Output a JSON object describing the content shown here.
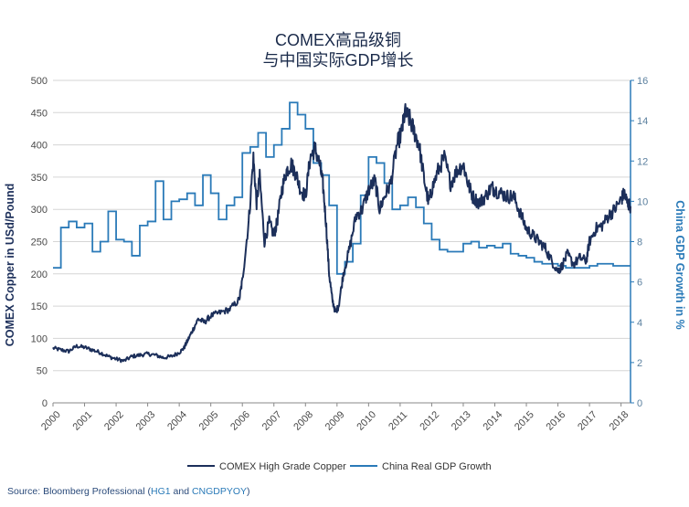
{
  "chart_data": {
    "type": "line",
    "title": [
      "COMEX高品级铜",
      "与中国实际GDP增长"
    ],
    "x_tick_labels": [
      "2000",
      "2001",
      "2002",
      "2003",
      "2004",
      "2005",
      "2006",
      "2007",
      "2008",
      "2009",
      "2010",
      "2011",
      "2012",
      "2013",
      "2014",
      "2015",
      "2016",
      "2017",
      "2018"
    ],
    "x_range": [
      2000,
      2018.3
    ],
    "y_left": {
      "label": "COMEX Copper in USd/Pound",
      "range": [
        0,
        500
      ],
      "ticks": [
        "0",
        "50",
        "100",
        "150",
        "200",
        "250",
        "300",
        "350",
        "400",
        "450",
        "500"
      ]
    },
    "y_right": {
      "label": "China GDP Growth in %",
      "range": [
        0,
        16
      ],
      "ticks": [
        "0",
        "2",
        "4",
        "6",
        "8",
        "10",
        "12",
        "14",
        "16"
      ]
    },
    "grid": true,
    "legend_position": "bottom-center",
    "series": [
      {
        "name": "COMEX High Grade Copper",
        "axis": "left",
        "color": "#1c2f5a",
        "x": [
          2000.0,
          2000.25,
          2000.5,
          2000.75,
          2001.0,
          2001.25,
          2001.5,
          2001.75,
          2002.0,
          2002.25,
          2002.5,
          2002.75,
          2003.0,
          2003.25,
          2003.5,
          2003.75,
          2004.0,
          2004.15,
          2004.25,
          2004.4,
          2004.6,
          2004.8,
          2005.0,
          2005.3,
          2005.6,
          2005.9,
          2006.0,
          2006.2,
          2006.35,
          2006.45,
          2006.55,
          2006.7,
          2006.85,
          2007.0,
          2007.1,
          2007.25,
          2007.4,
          2007.55,
          2007.7,
          2007.85,
          2008.0,
          2008.15,
          2008.3,
          2008.45,
          2008.55,
          2008.65,
          2008.75,
          2008.85,
          2008.95,
          2009.05,
          2009.2,
          2009.4,
          2009.6,
          2009.8,
          2010.0,
          2010.2,
          2010.35,
          2010.5,
          2010.7,
          2010.9,
          2011.05,
          2011.15,
          2011.3,
          2011.45,
          2011.6,
          2011.75,
          2011.9,
          2012.0,
          2012.2,
          2012.4,
          2012.6,
          2012.8,
          2013.0,
          2013.15,
          2013.3,
          2013.5,
          2013.7,
          2013.9,
          2014.0,
          2014.2,
          2014.4,
          2014.6,
          2014.8,
          2015.0,
          2015.2,
          2015.4,
          2015.6,
          2015.8,
          2016.0,
          2016.1,
          2016.3,
          2016.5,
          2016.7,
          2016.9,
          2017.0,
          2017.2,
          2017.4,
          2017.6,
          2017.8,
          2018.0,
          2018.1,
          2018.2,
          2018.3
        ],
        "values": [
          85,
          82,
          80,
          88,
          86,
          82,
          78,
          72,
          68,
          65,
          72,
          74,
          76,
          74,
          70,
          72,
          78,
          85,
          95,
          110,
          130,
          125,
          135,
          140,
          145,
          160,
          190,
          280,
          380,
          310,
          350,
          250,
          280,
          260,
          280,
          330,
          360,
          370,
          355,
          330,
          320,
          380,
          395,
          370,
          340,
          280,
          200,
          160,
          140,
          150,
          200,
          240,
          290,
          300,
          330,
          345,
          300,
          320,
          340,
          400,
          420,
          450,
          440,
          420,
          400,
          350,
          310,
          330,
          360,
          380,
          340,
          360,
          370,
          340,
          320,
          310,
          320,
          335,
          330,
          325,
          320,
          320,
          295,
          270,
          260,
          250,
          240,
          220,
          205,
          210,
          230,
          215,
          225,
          220,
          250,
          270,
          275,
          290,
          300,
          315,
          325,
          310,
          305
        ]
      },
      {
        "name": "China Real GDP Growth",
        "axis": "right",
        "color": "#2a7ab8",
        "x": [
          2000.0,
          2000.25,
          2000.5,
          2000.75,
          2001.0,
          2001.25,
          2001.5,
          2001.75,
          2002.0,
          2002.25,
          2002.5,
          2002.75,
          2003.0,
          2003.25,
          2003.5,
          2003.75,
          2004.0,
          2004.25,
          2004.5,
          2004.75,
          2005.0,
          2005.25,
          2005.5,
          2005.75,
          2006.0,
          2006.25,
          2006.5,
          2006.75,
          2007.0,
          2007.25,
          2007.5,
          2007.75,
          2008.0,
          2008.25,
          2008.5,
          2008.75,
          2009.0,
          2009.25,
          2009.5,
          2009.75,
          2010.0,
          2010.25,
          2010.5,
          2010.75,
          2011.0,
          2011.25,
          2011.5,
          2011.75,
          2012.0,
          2012.25,
          2012.5,
          2012.75,
          2013.0,
          2013.25,
          2013.5,
          2013.75,
          2014.0,
          2014.25,
          2014.5,
          2014.75,
          2015.0,
          2015.25,
          2015.5,
          2015.75,
          2016.0,
          2016.25,
          2016.5,
          2016.75,
          2017.0,
          2017.25,
          2017.5,
          2017.75,
          2018.0,
          2018.25
        ],
        "values": [
          6.7,
          8.7,
          9.0,
          8.7,
          8.9,
          7.5,
          8.0,
          9.5,
          8.1,
          8.0,
          7.3,
          8.8,
          9.0,
          11.0,
          9.1,
          10.0,
          10.1,
          10.4,
          9.8,
          11.3,
          10.4,
          9.1,
          9.8,
          10.2,
          12.4,
          12.7,
          13.4,
          12.2,
          12.8,
          13.6,
          14.9,
          14.3,
          13.6,
          11.9,
          11.3,
          9.8,
          6.4,
          7.0,
          7.9,
          10.3,
          12.2,
          11.9,
          10.9,
          9.6,
          9.8,
          10.2,
          9.7,
          8.9,
          8.1,
          7.6,
          7.5,
          7.5,
          7.9,
          8.0,
          7.7,
          7.8,
          7.7,
          7.9,
          7.4,
          7.3,
          7.2,
          7.0,
          6.9,
          6.9,
          6.8,
          6.7,
          6.7,
          6.7,
          6.8,
          6.9,
          6.9,
          6.8,
          6.8,
          6.8
        ]
      }
    ]
  },
  "source": {
    "prefix": "Source: Bloomberg Professional (",
    "code1": "HG1",
    "mid": " and ",
    "code2": "CNGDPYOY",
    "suffix": ")"
  }
}
